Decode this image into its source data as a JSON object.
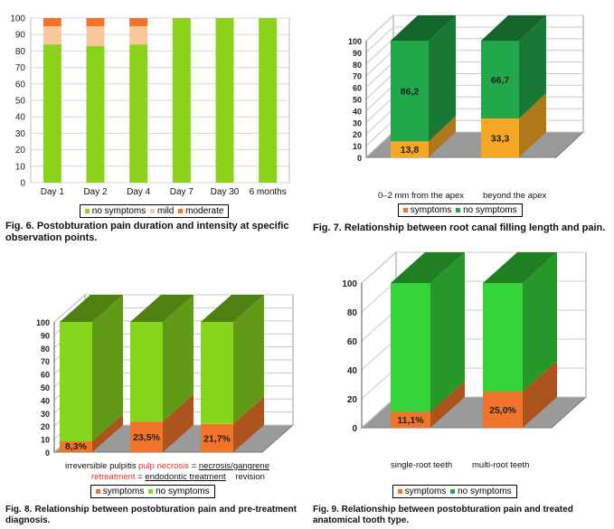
{
  "chart_data": [
    {
      "type": "bar",
      "stacked": true,
      "categories": [
        "Day  1",
        "Day 2",
        "Day 4",
        "Day 7",
        "Day 30",
        "6 months"
      ],
      "series": [
        {
          "name": "no symptoms",
          "values": [
            84,
            83,
            84,
            100,
            100,
            100
          ]
        },
        {
          "name": "mild",
          "values": [
            11,
            12,
            11,
            0,
            0,
            0
          ]
        },
        {
          "name": "moderate",
          "values": [
            5,
            5,
            5,
            0,
            0,
            0
          ]
        }
      ],
      "ylim": [
        0,
        100
      ],
      "yticks": [
        "0",
        "10",
        "20",
        "30",
        "40",
        "50",
        "60",
        "70",
        "80",
        "90",
        "100"
      ],
      "grid": true,
      "legend_position": "bottom",
      "colors": {
        "no symptoms": "#8bd21c",
        "mild": "#f7c79a",
        "moderate": "#f0742a"
      },
      "caption": "Fig. 6. Postobturation pain duration and intensity at specific observation points."
    },
    {
      "type": "bar",
      "stacked": true,
      "three_d": true,
      "categories": [
        "0–2 mm from the apex",
        "beyond the apex"
      ],
      "series": [
        {
          "name": "symptoms",
          "values": [
            13.8,
            33.3
          ],
          "labels": [
            "13,8",
            "33,3"
          ]
        },
        {
          "name": "no symptoms",
          "values": [
            86.2,
            66.7
          ],
          "labels": [
            "86,2",
            "66,7"
          ]
        }
      ],
      "ylim": [
        0,
        100
      ],
      "yticks": [
        "0",
        "10",
        "20",
        "30",
        "40",
        "50",
        "60",
        "70",
        "80",
        "90",
        "100"
      ],
      "grid": true,
      "legend_position": "bottom",
      "colors": {
        "symptoms": "#f5a623",
        "no symptoms": "#22a84a"
      },
      "caption": "Fig. 7. Relationship between root canal filling length and pain."
    },
    {
      "type": "bar",
      "stacked": true,
      "three_d": true,
      "categories": [
        "irreversible pulpitis",
        "pulp necrosis = necrosis/gangrene",
        "retreatment = endodontic treatment    revision"
      ],
      "category_parts": [
        [
          "irreversible pulpitis"
        ],
        [
          "pulp necrosis",
          " = ",
          "necrosis/gangrene"
        ],
        [
          "retreatment",
          " = ",
          "endodontic treatment",
          "    revision"
        ]
      ],
      "series": [
        {
          "name": "symptoms",
          "values": [
            8.3,
            23.5,
            21.7
          ],
          "labels": [
            "8,3%",
            "23,5%",
            "21,7%"
          ]
        },
        {
          "name": "no symptoms",
          "values": [
            91.7,
            76.5,
            78.3
          ]
        }
      ],
      "ylim": [
        0,
        100
      ],
      "yticks": [
        "0",
        "10",
        "20",
        "30",
        "40",
        "50",
        "60",
        "70",
        "80",
        "90",
        "100"
      ],
      "grid": true,
      "legend_position": "bottom",
      "colors": {
        "symptoms": "#f0742a",
        "no symptoms": "#86d61e"
      },
      "caption": "Fig. 8. Relationship between postobturation pain and pre-treatment diagnosis."
    },
    {
      "type": "bar",
      "stacked": true,
      "three_d": true,
      "categories": [
        "single-root teeth",
        "multi-root teeth"
      ],
      "series": [
        {
          "name": "symptoms",
          "values": [
            11.1,
            25.0
          ],
          "labels": [
            "11,1%",
            "25,0%"
          ]
        },
        {
          "name": "no symptoms",
          "values": [
            88.9,
            75.0
          ]
        }
      ],
      "ylim": [
        0,
        100
      ],
      "yticks": [
        "0",
        "20",
        "40",
        "60",
        "80",
        "100"
      ],
      "grid": true,
      "legend_position": "bottom",
      "colors": {
        "symptoms": "#f0742a",
        "no symptoms": "#35d33a"
      },
      "caption": "Fig. 9. Relationship between postobturation pain and treated anatomical tooth type."
    }
  ]
}
